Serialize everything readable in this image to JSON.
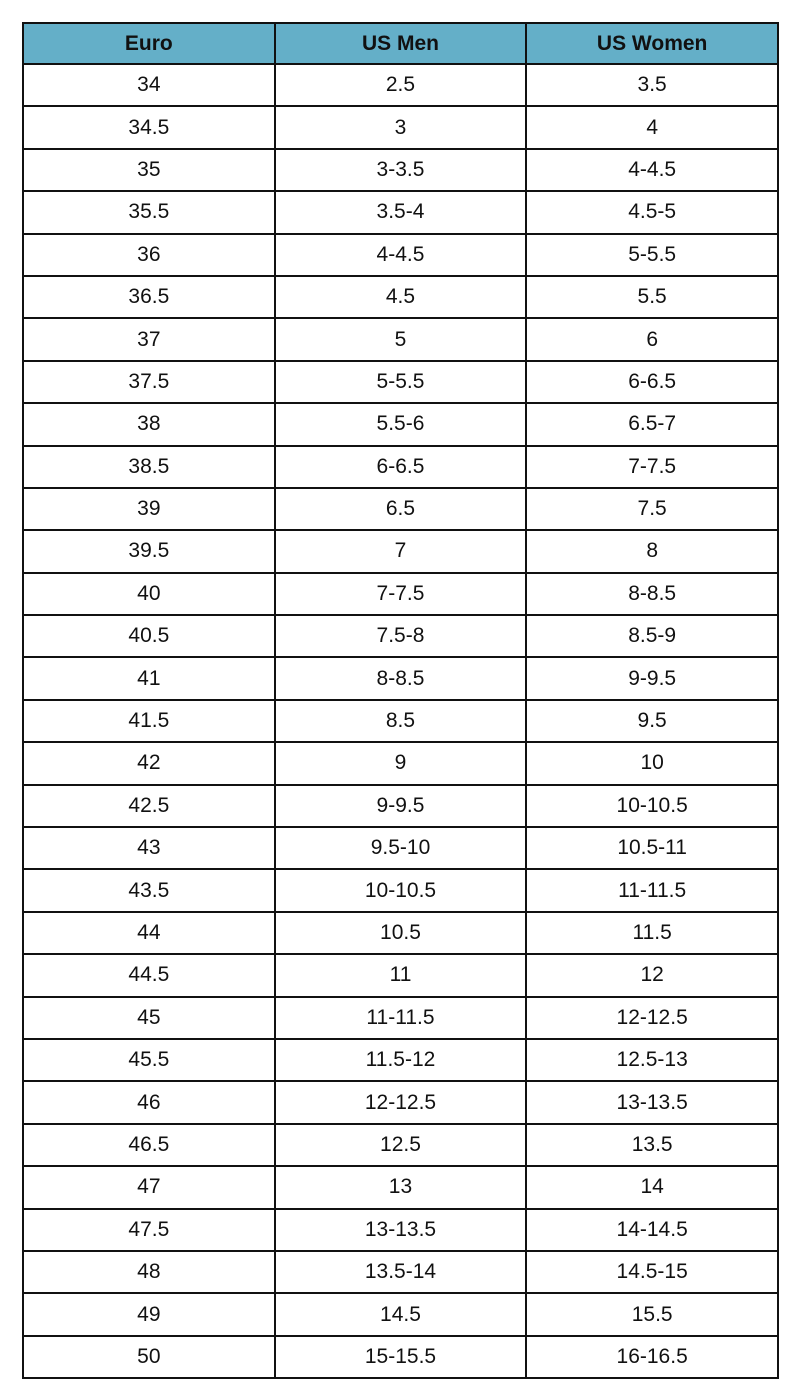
{
  "header_color": "#64afc8",
  "columns": [
    "Euro",
    "US Men",
    "US Women"
  ],
  "rows": [
    [
      "34",
      "2.5",
      "3.5"
    ],
    [
      "34.5",
      "3",
      "4"
    ],
    [
      "35",
      "3-3.5",
      "4-4.5"
    ],
    [
      "35.5",
      "3.5-4",
      "4.5-5"
    ],
    [
      "36",
      "4-4.5",
      "5-5.5"
    ],
    [
      "36.5",
      "4.5",
      "5.5"
    ],
    [
      "37",
      "5",
      "6"
    ],
    [
      "37.5",
      "5-5.5",
      "6-6.5"
    ],
    [
      "38",
      "5.5-6",
      "6.5-7"
    ],
    [
      "38.5",
      "6-6.5",
      "7-7.5"
    ],
    [
      "39",
      "6.5",
      "7.5"
    ],
    [
      "39.5",
      "7",
      "8"
    ],
    [
      "40",
      "7-7.5",
      "8-8.5"
    ],
    [
      "40.5",
      "7.5-8",
      "8.5-9"
    ],
    [
      "41",
      "8-8.5",
      "9-9.5"
    ],
    [
      "41.5",
      "8.5",
      "9.5"
    ],
    [
      "42",
      "9",
      "10"
    ],
    [
      "42.5",
      "9-9.5",
      "10-10.5"
    ],
    [
      "43",
      "9.5-10",
      "10.5-11"
    ],
    [
      "43.5",
      "10-10.5",
      "11-11.5"
    ],
    [
      "44",
      "10.5",
      "11.5"
    ],
    [
      "44.5",
      "11",
      "12"
    ],
    [
      "45",
      "11-11.5",
      "12-12.5"
    ],
    [
      "45.5",
      "11.5-12",
      "12.5-13"
    ],
    [
      "46",
      "12-12.5",
      "13-13.5"
    ],
    [
      "46.5",
      "12.5",
      "13.5"
    ],
    [
      "47",
      "13",
      "14"
    ],
    [
      "47.5",
      "13-13.5",
      "14-14.5"
    ],
    [
      "48",
      "13.5-14",
      "14.5-15"
    ],
    [
      "49",
      "14.5",
      "15.5"
    ],
    [
      "50",
      "15-15.5",
      "16-16.5"
    ]
  ]
}
